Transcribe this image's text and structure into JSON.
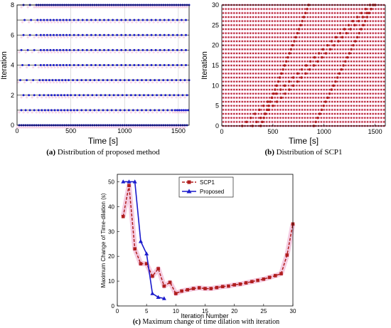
{
  "captions": {
    "a_tag": "(a)",
    "a_text": "Distribution of proposed method",
    "b_tag": "(b)",
    "b_text": "Distribution of SCP1",
    "c_tag": "(c)",
    "c_text": "Maximum change of time dilation with iteration"
  },
  "colors": {
    "proposed": "#1a1acc",
    "scp1": "#b01e1e",
    "glow": "#f3c3dd"
  },
  "chart_data": [
    {
      "id": "a",
      "type": "scatter",
      "title": "",
      "xlabel": "Time [s]",
      "ylabel": "Iteration",
      "xlim": [
        0,
        1600
      ],
      "ylim": [
        0,
        8
      ],
      "xticks": [
        0,
        500,
        1000,
        1500
      ],
      "yticks": [
        0,
        2,
        4,
        6,
        8
      ],
      "grid": true,
      "series": [
        {
          "iteration": 0,
          "times": [
            20,
            40,
            60,
            80,
            100,
            120,
            140,
            160,
            180,
            200,
            220,
            240,
            260,
            280,
            300,
            320,
            340,
            360,
            380,
            400,
            420,
            440,
            460,
            480,
            500,
            520,
            540,
            560,
            580,
            600,
            620,
            640,
            660,
            680,
            700,
            720,
            740,
            760,
            780,
            800,
            820,
            840,
            860,
            880,
            900,
            920,
            940,
            960,
            980,
            1000,
            1020,
            1040,
            1060,
            1080,
            1100,
            1120,
            1140,
            1160,
            1180,
            1200,
            1220,
            1240,
            1260,
            1280,
            1300,
            1320,
            1340,
            1360,
            1380,
            1400,
            1420,
            1440,
            1460,
            1480,
            1500,
            1520,
            1540,
            1560,
            1580
          ]
        },
        {
          "iteration": 1,
          "times": [
            40,
            80,
            120,
            160,
            200,
            230,
            260,
            290,
            320,
            350,
            380,
            410,
            440,
            470,
            500,
            530,
            560,
            600,
            640,
            680,
            720,
            760,
            800,
            840,
            880,
            920,
            960,
            1000,
            1040,
            1080,
            1120,
            1160,
            1200,
            1240,
            1280,
            1320,
            1360,
            1400,
            1440,
            1470,
            1490,
            1510,
            1530,
            1550,
            1570,
            1590
          ]
        },
        {
          "iteration": 2,
          "times": [
            60,
            110,
            160,
            210,
            250,
            290,
            320,
            350,
            380,
            410,
            440,
            470,
            500,
            540,
            580,
            620,
            660,
            700,
            740,
            780,
            820,
            860,
            900,
            940,
            980,
            1020,
            1060,
            1100,
            1140,
            1180,
            1220,
            1260,
            1300,
            1340,
            1380,
            1420,
            1460,
            1500,
            1540,
            1580
          ]
        },
        {
          "iteration": 3,
          "times": [
            30,
            90,
            150,
            210,
            240,
            270,
            300,
            330,
            360,
            390,
            420,
            450,
            480,
            520,
            560,
            600,
            640,
            680,
            720,
            760,
            800,
            840,
            880,
            920,
            960,
            1000,
            1040,
            1080,
            1120,
            1160,
            1200,
            1240,
            1280,
            1320,
            1360,
            1400,
            1440,
            1480,
            1520,
            1560,
            1600
          ]
        },
        {
          "iteration": 4,
          "times": [
            50,
            110,
            170,
            220,
            250,
            280,
            310,
            340,
            370,
            400,
            430,
            460,
            490,
            530,
            570,
            610,
            650,
            690,
            730,
            770,
            810,
            850,
            890,
            930,
            970,
            1010,
            1050,
            1090,
            1130,
            1170,
            1210,
            1250,
            1290,
            1330,
            1370,
            1410,
            1450,
            1490,
            1530,
            1570
          ]
        },
        {
          "iteration": 5,
          "times": [
            40,
            100,
            160,
            220,
            250,
            280,
            310,
            340,
            370,
            400,
            430,
            460,
            490,
            530,
            570,
            610,
            650,
            690,
            730,
            770,
            810,
            850,
            890,
            930,
            970,
            1010,
            1050,
            1090,
            1130,
            1170,
            1210,
            1250,
            1290,
            1330,
            1370,
            1410,
            1450,
            1490,
            1530,
            1570
          ]
        },
        {
          "iteration": 6,
          "times": [
            60,
            120,
            180,
            220,
            250,
            280,
            310,
            340,
            370,
            400,
            430,
            460,
            490,
            530,
            570,
            610,
            650,
            690,
            730,
            770,
            810,
            850,
            890,
            930,
            970,
            1010,
            1050,
            1090,
            1130,
            1170,
            1210,
            1250,
            1290,
            1330,
            1370,
            1410,
            1450,
            1490,
            1530,
            1570
          ]
        },
        {
          "iteration": 7,
          "times": [
            70,
            130,
            190,
            220,
            250,
            280,
            310,
            340,
            370,
            400,
            430,
            460,
            490,
            530,
            570,
            610,
            650,
            690,
            730,
            770,
            810,
            850,
            890,
            930,
            970,
            1010,
            1050,
            1090,
            1130,
            1170,
            1210,
            1250,
            1290,
            1330,
            1370,
            1410,
            1450,
            1490,
            1530,
            1570
          ]
        },
        {
          "iteration": 8,
          "times": [
            60,
            120,
            180,
            200,
            220,
            240,
            260,
            280,
            300,
            320,
            340,
            360,
            380,
            400,
            420,
            440,
            460,
            480,
            500,
            520,
            540,
            560,
            580,
            600,
            620,
            640,
            660,
            680,
            700,
            720,
            740,
            760,
            780,
            800,
            820,
            840,
            860,
            880,
            900,
            920,
            940,
            960,
            980,
            1000,
            1020,
            1040,
            1060,
            1080,
            1100,
            1120,
            1140,
            1160,
            1180,
            1200,
            1220,
            1240,
            1260,
            1280,
            1300,
            1320,
            1340,
            1360,
            1380,
            1400,
            1420,
            1440,
            1460,
            1480,
            1500,
            1520,
            1540,
            1560,
            1580,
            1600
          ]
        }
      ]
    },
    {
      "id": "b",
      "type": "scatter",
      "title": "",
      "xlabel": "Time [s]",
      "ylabel": "Iteration",
      "xlim": [
        0,
        1600
      ],
      "ylim": [
        0,
        30
      ],
      "xticks": [
        0,
        500,
        1000,
        1500
      ],
      "yticks": [
        0,
        5,
        10,
        15,
        20,
        25,
        30
      ],
      "grid": false,
      "note": "points per iteration are evenly spaced, with dense bands drifting from ~350 s to ~1450 s",
      "streams": [
        {
          "from_iteration": 0,
          "to_iteration": 30,
          "start_time": 200,
          "end_time": 1450,
          "points": 31
        },
        {
          "from_iteration": 0,
          "to_iteration": 30,
          "start_time": 300,
          "end_time": 1500,
          "points": 31
        },
        {
          "from_iteration": 0,
          "to_iteration": 30,
          "start_time": 380,
          "end_time": 850,
          "points": 31
        },
        {
          "from_iteration": 0,
          "to_iteration": 30,
          "start_time": 900,
          "end_time": 1480,
          "points": 31
        }
      ],
      "background_points_per_row": 60
    },
    {
      "id": "c",
      "type": "line",
      "title": "",
      "xlabel": "Iteration Number",
      "ylabel": "Maximum Change of Time-dilation (s)",
      "xlim": [
        0,
        30
      ],
      "ylim": [
        0,
        53
      ],
      "xticks": [
        0,
        5,
        10,
        15,
        20,
        25,
        30
      ],
      "yticks": [
        0,
        10,
        20,
        30,
        40,
        50
      ],
      "legend": "top-left",
      "series": [
        {
          "name": "SCP1",
          "style": "dashed-square",
          "x": [
            1,
            2,
            3,
            4,
            5,
            6,
            7,
            8,
            9,
            10,
            11,
            12,
            13,
            14,
            15,
            16,
            17,
            18,
            19,
            20,
            21,
            22,
            23,
            24,
            25,
            26,
            27,
            28,
            29,
            30
          ],
          "y": [
            36,
            48.5,
            23,
            17,
            17,
            12,
            15,
            8,
            9.5,
            5,
            6,
            6.5,
            7,
            7.3,
            7,
            7,
            7.4,
            7.8,
            8,
            8.5,
            8.8,
            9.3,
            9.8,
            10.3,
            10.8,
            11.5,
            12.2,
            13,
            20.5,
            33
          ]
        },
        {
          "name": "Proposed",
          "style": "solid-triangle",
          "x": [
            1,
            2,
            3,
            4,
            5,
            6,
            7,
            8
          ],
          "y": [
            50,
            50,
            50,
            26,
            21,
            5,
            3.5,
            3
          ]
        }
      ]
    }
  ]
}
